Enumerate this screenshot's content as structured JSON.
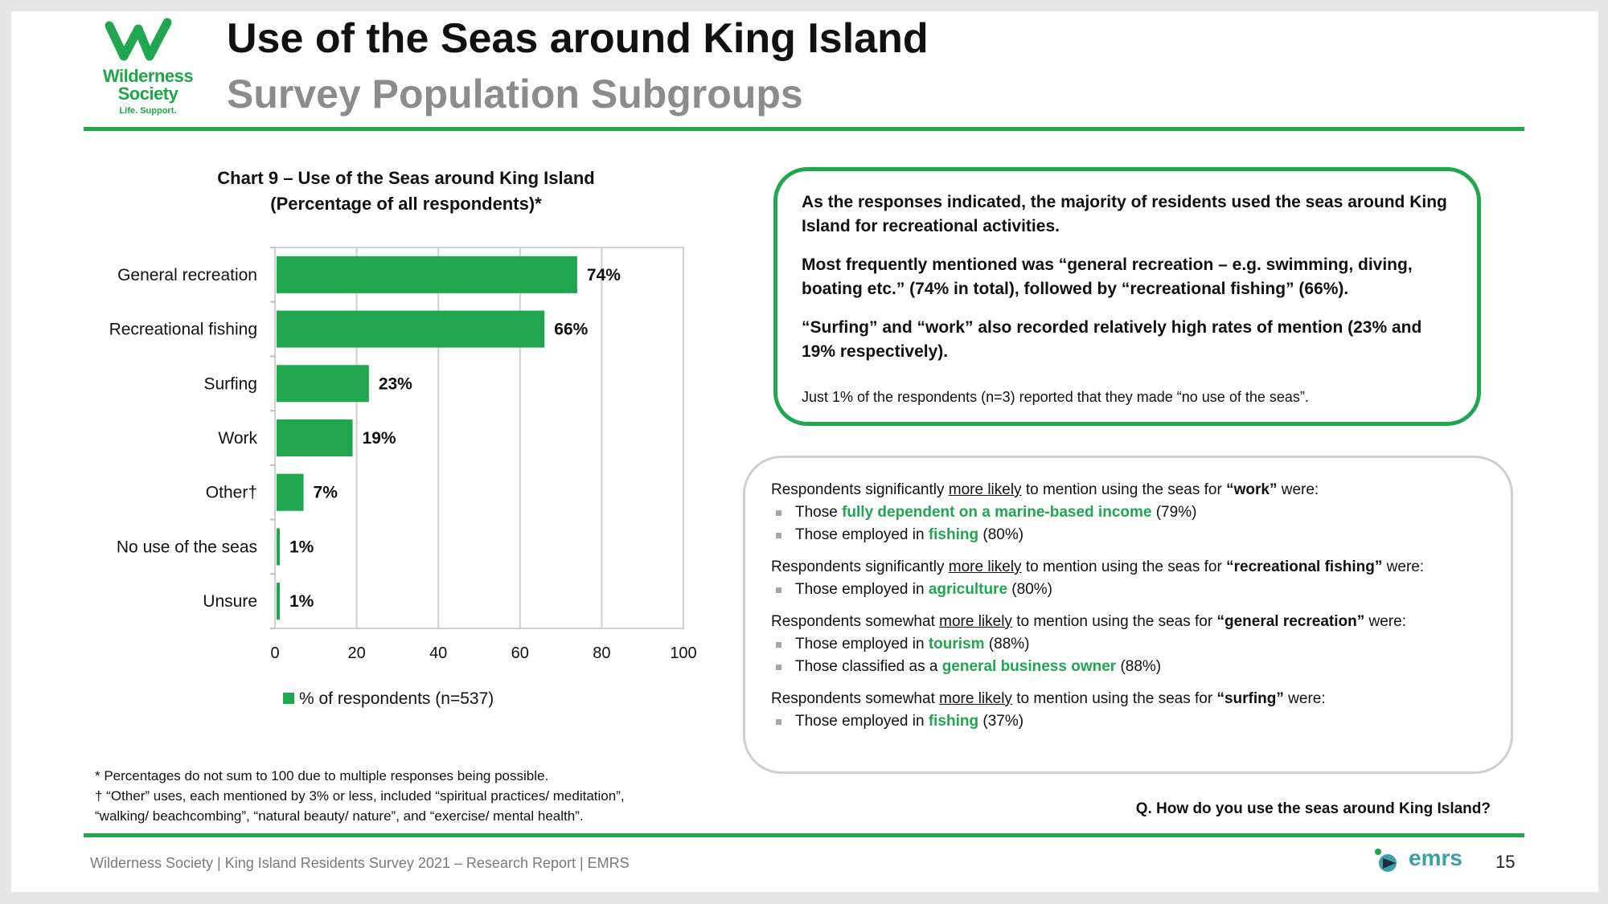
{
  "header": {
    "logo_name": "Wilderness Society",
    "logo_tagline": "Life. Support.",
    "title": "Use of the Seas around King Island",
    "subtitle": "Survey Population Subgroups"
  },
  "colors": {
    "accent": "#21a650",
    "subtitle_gray": "#8c8c8c",
    "box_border_gray": "#cfcfcf",
    "emrs_teal": "#3d9ea8"
  },
  "chart_data": {
    "type": "bar",
    "orientation": "horizontal",
    "title_line1": "Chart 9 – Use of the Seas around King Island",
    "title_line2": "(Percentage of all respondents)*",
    "categories": [
      "General recreation",
      "Recreational fishing",
      "Surfing",
      "Work",
      "Other†",
      "No use of the seas",
      "Unsure"
    ],
    "series": [
      {
        "name": "% of respondents (n=537)",
        "values": [
          74,
          66,
          23,
          19,
          7,
          1,
          1
        ],
        "labels": [
          "74%",
          "66%",
          "23%",
          "19%",
          "7%",
          "1%",
          "1%"
        ]
      }
    ],
    "xlim": [
      0,
      100
    ],
    "xticks": [
      0,
      20,
      40,
      60,
      80,
      100
    ],
    "grid": true,
    "legend_position": "bottom",
    "bar_color": "#21a650"
  },
  "footnotes": {
    "line1": "* Percentages do not sum to 100 due to multiple responses being possible.",
    "line2": "† “Other” uses, each mentioned by 3% or less, included “spiritual practices/ meditation”,",
    "line3": "“walking/ beachcombing”, “natural beauty/ nature”, and “exercise/ mental health”."
  },
  "summary_box": {
    "p1": "As the responses indicated, the majority of residents used the seas around King Island for recreational activities.",
    "p2": "Most frequently mentioned was “general recreation – e.g. swimming, diving, boating etc.” (74% in total), followed by “recreational fishing” (66%).",
    "p3": "“Surfing” and “work” also recorded relatively high rates of mention (23% and 19% respectively).",
    "p4": "Just 1% of the respondents (n=3) reported that they made “no use of the seas”."
  },
  "subgroups": {
    "g1": {
      "pre": "Respondents significantly ",
      "ul": "more likely",
      "mid": " to mention using the seas for ",
      "term": "“work”",
      "post": " were:",
      "b1": {
        "pre": "Those ",
        "hl": "fully dependent on a marine-based income",
        "post": " (79%)"
      },
      "b2": {
        "pre": "Those employed in ",
        "hl": "fishing",
        "post": " (80%)"
      }
    },
    "g2": {
      "pre": "Respondents significantly ",
      "ul": "more likely",
      "mid": " to mention using the seas for ",
      "term": "“recreational fishing”",
      "post": " were:",
      "b1": {
        "pre": "Those employed in ",
        "hl": "agriculture",
        "post": " (80%)"
      }
    },
    "g3": {
      "pre": "Respondents somewhat ",
      "ul": "more likely",
      "mid": " to mention using the seas for ",
      "term": "“general recreation”",
      "post": " were:",
      "b1": {
        "pre": "Those employed in ",
        "hl": "tourism",
        "post": " (88%)"
      },
      "b2": {
        "pre": "Those classified as a ",
        "hl": "general business owner",
        "post": " (88%)"
      }
    },
    "g4": {
      "pre": "Respondents somewhat ",
      "ul": "more likely",
      "mid": " to mention using the seas for ",
      "term": "“surfing”",
      "post": " were:",
      "b1": {
        "pre": "Those employed in ",
        "hl": "fishing",
        "post": " (37%)"
      }
    }
  },
  "question": "Q. How do you use the seas around King Island?",
  "footer": {
    "text": "Wilderness Society | King Island Residents Survey 2021 – Research Report | EMRS",
    "brand": "emrs",
    "page": "15"
  }
}
